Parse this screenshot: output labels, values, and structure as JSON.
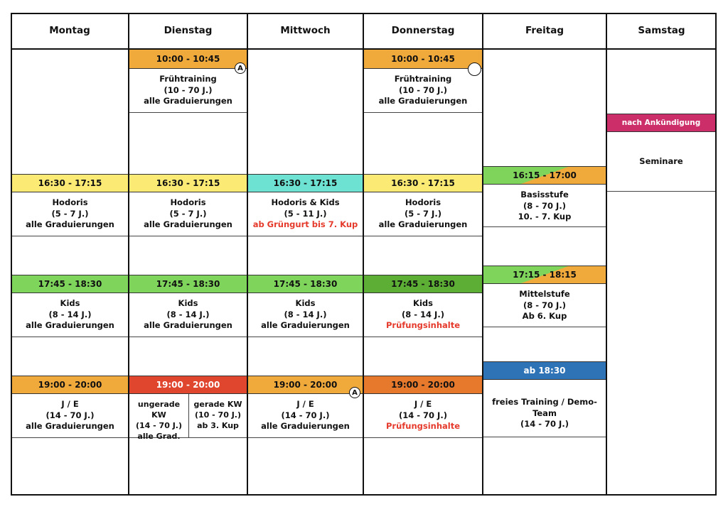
{
  "days": [
    "Montag",
    "Dienstag",
    "Mittwoch",
    "Donnerstag",
    "Freitag",
    "Samstag"
  ],
  "colors": {
    "orange": "#f0a93b",
    "yellow": "#fbeb75",
    "cyan": "#6ee2d2",
    "green": "#7fd55c",
    "dark_green": "#5cae35",
    "red": "#e0452e",
    "dark_orange": "#e7792d",
    "blue": "#2f73b7",
    "magenta": "#cc2e6a",
    "accent_red_text": "#e53a2b"
  },
  "montag": {
    "s1": {
      "time": "16:30 - 17:15",
      "l1": "Hodoris",
      "l2": "(5 - 7 J.)",
      "l3": "alle Graduierungen"
    },
    "s2": {
      "time": "17:45 - 18:30",
      "l1": "Kids",
      "l2": "(8 - 14 J.)",
      "l3": "alle Graduierungen"
    },
    "s3": {
      "time": "19:00 - 20:00",
      "l1": "J / E",
      "l2": "(14 - 70 J.)",
      "l3": "alle Graduierungen"
    }
  },
  "dienstag": {
    "s0": {
      "time": "10:00 - 10:45",
      "badge": "A",
      "l1": "Frühtraining",
      "l2": "(10 - 70 J.)",
      "l3": "alle Graduierungen"
    },
    "s1": {
      "time": "16:30 - 17:15",
      "l1": "Hodoris",
      "l2": "(5 - 7 J.)",
      "l3": "alle Graduierungen"
    },
    "s2": {
      "time": "17:45 - 18:30",
      "l1": "Kids",
      "l2": "(8 - 14 J.)",
      "l3": "alle Graduierungen"
    },
    "s3": {
      "time": "19:00 - 20:00",
      "left": {
        "l1": "ungerade KW",
        "l2": "(14 - 70 J.)",
        "l3": "alle Grad."
      },
      "right": {
        "l1": "gerade KW",
        "l2": "(10 - 70 J.)",
        "l3": "ab 3. Kup"
      }
    }
  },
  "mittwoch": {
    "s1": {
      "time": "16:30 - 17:15",
      "l1": "Hodoris & Kids",
      "l2": "(5 - 11 J.)",
      "l3": "ab Grüngurt bis 7. Kup"
    },
    "s2": {
      "time": "17:45 - 18:30",
      "l1": "Kids",
      "l2": "(8 - 14 J.)",
      "l3": "alle Graduierungen"
    },
    "s3": {
      "time": "19:00 - 20:00",
      "badge": "A",
      "l1": "J / E",
      "l2": "(14 - 70 J.)",
      "l3": "alle Graduierungen"
    }
  },
  "donnerstag": {
    "s0": {
      "time": "10:00 - 10:45",
      "l1": "Frühtraining",
      "l2": "(10 - 70 J.)",
      "l3": "alle Graduierungen"
    },
    "s1": {
      "time": "16:30 - 17:15",
      "l1": "Hodoris",
      "l2": "(5 - 7 J.)",
      "l3": "alle Graduierungen"
    },
    "s2": {
      "time": "17:45 - 18:30",
      "l1": "Kids",
      "l2": "(8 - 14 J.)",
      "l3": "Prüfungsinhalte"
    },
    "s3": {
      "time": "19:00 - 20:00",
      "l1": "J / E",
      "l2": "(14 - 70 J.)",
      "l3": "Prüfungsinhalte"
    }
  },
  "freitag": {
    "s1": {
      "time": "16:15 - 17:00",
      "l1": "Basisstufe",
      "l2": "(8 - 70 J.)",
      "l3": "10. - 7. Kup"
    },
    "s2": {
      "time": "17:15 - 18:15",
      "l1": "Mittelstufe",
      "l2": "(8 - 70 J.)",
      "l3": "Ab 6. Kup"
    },
    "s3": {
      "time": "ab 18:30",
      "l1": "freies Training / Demo-Team",
      "l2": "(14 - 70 J.)"
    }
  },
  "samstag": {
    "s1": {
      "time": "nach Ankündigung",
      "l1": "Seminare"
    }
  }
}
